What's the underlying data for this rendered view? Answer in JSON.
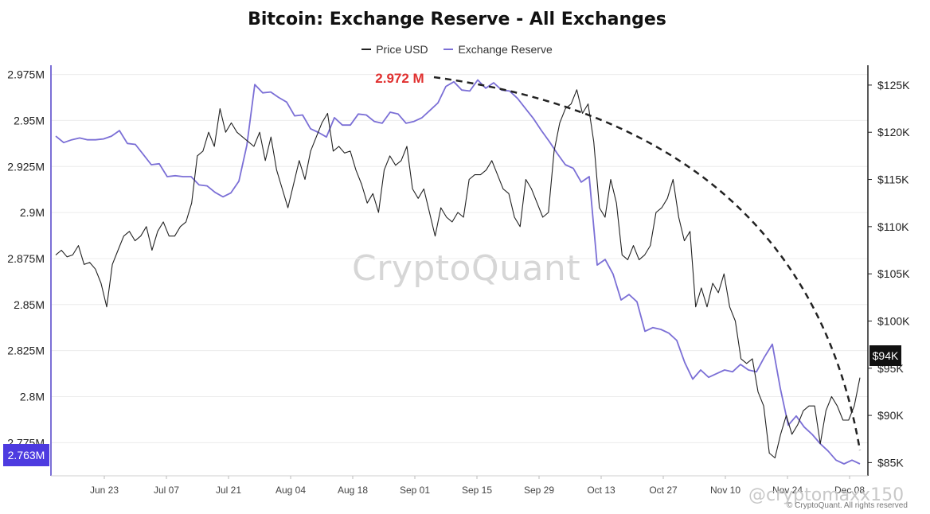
{
  "chart_data": {
    "type": "line",
    "title": "Bitcoin: Exchange Reserve - All Exchanges",
    "legend": [
      "Price USD",
      "Exchange Reserve"
    ],
    "legend_placement": "top-center",
    "x_ticks": [
      "Jun 23",
      "Jul 07",
      "Jul 21",
      "Aug 04",
      "Aug 18",
      "Sep 01",
      "Sep 15",
      "Sep 29",
      "Oct 13",
      "Oct 27",
      "Nov 10",
      "Nov 24",
      "Dec 08"
    ],
    "y_left_ticks": [
      "2.975M",
      "2.95M",
      "2.925M",
      "2.9M",
      "2.875M",
      "2.85M",
      "2.825M",
      "2.8M",
      "2.775M"
    ],
    "y_left_range": [
      2.757,
      2.98
    ],
    "y_right_ticks": [
      "$125K",
      "$120K",
      "$115K",
      "$110K",
      "$105K",
      "$100K",
      "$95K",
      "$90K",
      "$85K"
    ],
    "y_right_range": [
      83.6,
      127.1
    ],
    "grid": "horizontal",
    "annotation": "2.972 M",
    "current_reserve_label": "2.763M",
    "current_price_label": "$94K",
    "series": [
      {
        "name": "Exchange Reserve",
        "axis": "left",
        "color": "#7b6fd6",
        "values": [
          2.9415,
          2.938,
          2.9395,
          2.9405,
          2.9395,
          2.9395,
          2.94,
          2.9415,
          2.9445,
          2.9375,
          2.937,
          2.9315,
          2.926,
          2.9265,
          2.9195,
          2.92,
          2.9195,
          2.9195,
          2.915,
          2.9145,
          2.911,
          2.9085,
          2.9107,
          2.917,
          2.9365,
          2.9695,
          2.965,
          2.9655,
          2.9625,
          2.96,
          2.9525,
          2.953,
          2.9455,
          2.9435,
          2.941,
          2.9515,
          2.9475,
          2.9475,
          2.9535,
          2.953,
          2.9495,
          2.9485,
          2.9545,
          2.9535,
          2.9485,
          2.9495,
          2.9515,
          2.9555,
          2.9595,
          2.9685,
          2.971,
          2.9665,
          2.966,
          2.972,
          2.9675,
          2.9705,
          2.9665,
          2.966,
          2.962,
          2.9565,
          2.951,
          2.9445,
          2.9385,
          2.932,
          2.926,
          2.924,
          2.9165,
          2.9195,
          2.8715,
          2.8745,
          2.8665,
          2.8525,
          2.8555,
          2.8515,
          2.8355,
          2.8375,
          2.8365,
          2.8345,
          2.8305,
          2.8185,
          2.8095,
          2.8145,
          2.8105,
          2.8125,
          2.8145,
          2.8135,
          2.8175,
          2.8145,
          2.8135,
          2.8215,
          2.8285,
          2.8045,
          2.7845,
          2.7895,
          2.7835,
          2.7795,
          2.7745,
          2.7705,
          2.7655,
          2.7635,
          2.7655,
          2.7635
        ]
      },
      {
        "name": "Price USD",
        "axis": "right",
        "color": "#222222",
        "values": [
          107,
          107.5,
          106.8,
          107,
          108,
          106,
          106.2,
          105.5,
          104,
          101.5,
          106,
          107.5,
          109,
          109.5,
          108.5,
          109,
          110,
          107.5,
          109.5,
          110.5,
          109,
          109,
          110,
          110.5,
          112.5,
          117.5,
          118,
          120,
          118.5,
          122.5,
          120,
          121,
          120,
          119.5,
          119,
          118.5,
          120,
          117,
          119.5,
          116,
          114,
          112,
          114.5,
          117,
          115,
          118,
          119.5,
          121,
          122,
          118,
          118.5,
          117.8,
          118,
          116,
          114.5,
          112.5,
          113.5,
          111.5,
          116,
          117.5,
          116.5,
          117,
          118.5,
          114,
          113,
          114,
          111.5,
          109,
          112,
          111,
          110.5,
          111.5,
          111,
          115,
          115.5,
          115.5,
          116,
          117,
          115.5,
          114,
          113.5,
          111,
          110,
          115,
          114,
          112.5,
          111,
          111.5,
          118,
          121,
          122.5,
          123,
          124.5,
          122,
          123,
          119,
          112,
          111,
          115,
          112.5,
          107,
          106.5,
          108,
          106.5,
          107,
          108,
          111.5,
          112,
          113,
          115,
          111,
          108.5,
          109.5,
          101.5,
          103.5,
          101.5,
          104,
          103,
          105,
          101.5,
          100,
          96,
          95.5,
          96,
          92.5,
          91,
          86,
          85.5,
          88,
          90,
          88,
          89,
          90.5,
          91,
          91,
          87,
          90.5,
          92,
          91,
          89.5,
          89.5,
          91,
          94
        ]
      }
    ]
  },
  "footer": {
    "copyright": "© CryptoQuant. All rights reserved",
    "watermark": "CryptoQuant",
    "handle": "@cryptomaxx150"
  }
}
